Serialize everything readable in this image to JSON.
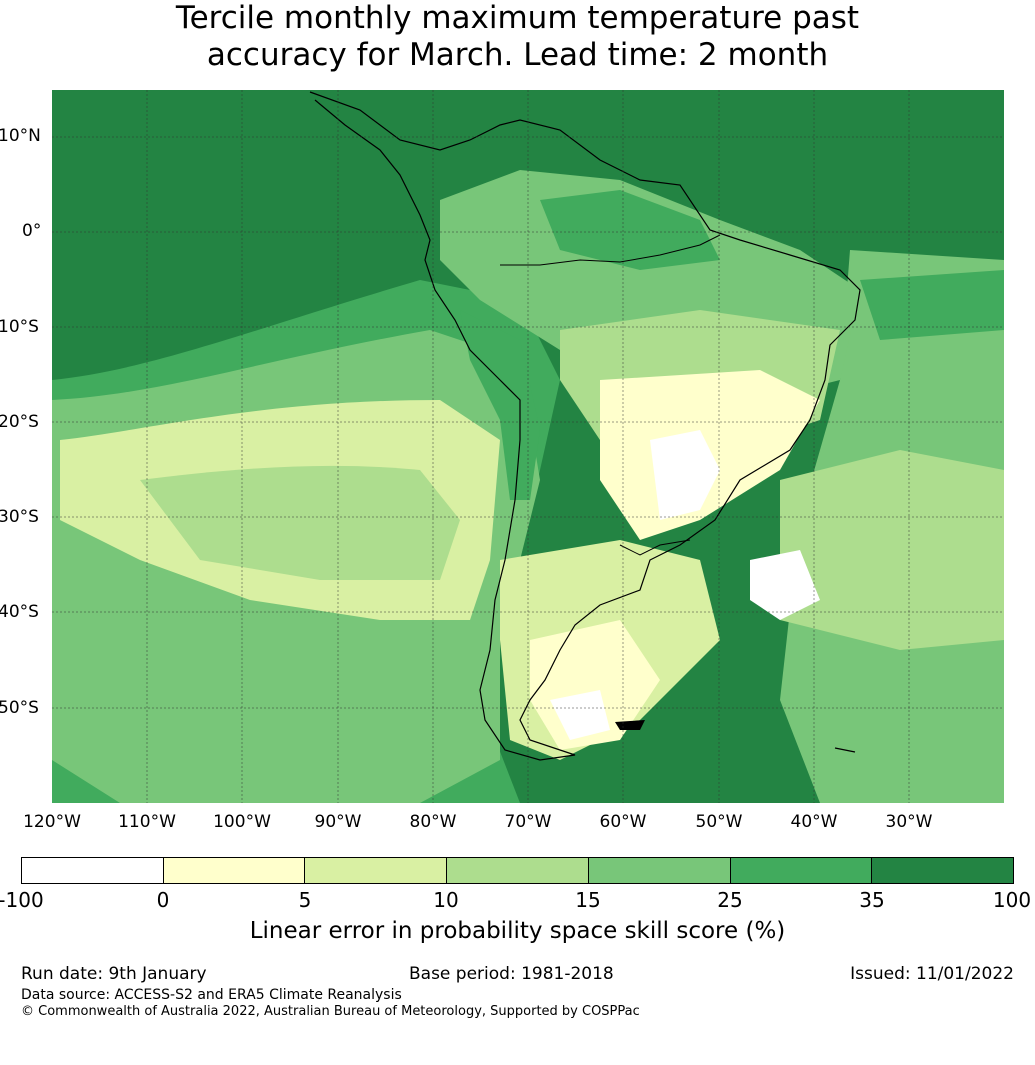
{
  "title": {
    "line1": "Tercile monthly maximum temperature past",
    "line2": "accuracy for March. Lead time: 2 month"
  },
  "map": {
    "lat_labels": [
      "10°N",
      "0°",
      "10°S",
      "20°S",
      "30°S",
      "40°S",
      "50°S"
    ],
    "lon_labels": [
      "120°W",
      "110°W",
      "100°W",
      "90°W",
      "80°W",
      "70°W",
      "60°W",
      "50°W",
      "40°W",
      "30°W"
    ],
    "colors": {
      "ocean_skill_high": "#228a44",
      "band_25_35": "#41ab5d",
      "band_15_25": "#78c679",
      "band_10_15": "#addd8e",
      "band_5_10": "#d9f0a3",
      "band_0_5": "#ffffcc",
      "band_neg": "#ffffff"
    }
  },
  "colorbar": {
    "segments": [
      {
        "range": "-100 to 0",
        "color": "#ffffff"
      },
      {
        "range": "0 to 5",
        "color": "#ffffcc"
      },
      {
        "range": "5 to 10",
        "color": "#d9f0a3"
      },
      {
        "range": "10 to 15",
        "color": "#addd8e"
      },
      {
        "range": "15 to 25",
        "color": "#78c679"
      },
      {
        "range": "25 to 35",
        "color": "#41ab5d"
      },
      {
        "range": "35 to 100",
        "color": "#238443"
      }
    ],
    "ticks": [
      "-100",
      "0",
      "5",
      "10",
      "15",
      "25",
      "35",
      "100"
    ],
    "label": "Linear error in probability space skill score (%)"
  },
  "footer": {
    "run_date": "Run date: 9th January",
    "base_period": "Base period: 1981-2018",
    "issued": "Issued: 11/01/2022",
    "data_source": "Data source: ACCESS-S2 and ERA5 Climate Reanalysis",
    "copyright": "© Commonwealth of Australia 2022, Australian Bureau of Meteorology, Supported by COSPPac"
  }
}
